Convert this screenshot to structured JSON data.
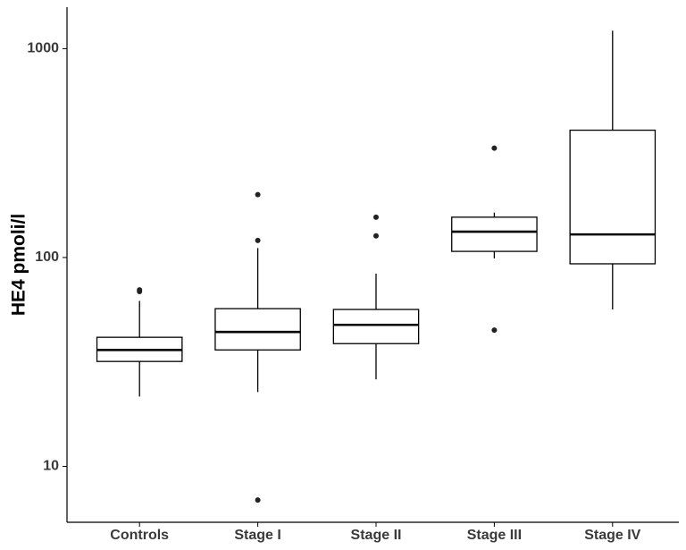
{
  "chart_data": {
    "type": "box",
    "y_label": "HE4 pmoli/l",
    "log_y": true,
    "categories": [
      "Controls",
      "Stage I",
      "Stage II",
      "Stage III",
      "Stage IV"
    ],
    "boxes": [
      {
        "whislo": 21.6,
        "q1": 31.8,
        "med": 36.1,
        "q3": 41.5,
        "whishi": 62,
        "fliers": [
          70,
          68.7
        ]
      },
      {
        "whislo": 22.7,
        "q1": 36.1,
        "med": 44,
        "q3": 56.9,
        "whishi": 111,
        "fliers": [
          200,
          120.7,
          6.9
        ]
      },
      {
        "whislo": 26.1,
        "q1": 38.7,
        "med": 47.6,
        "q3": 56.4,
        "whishi": 83.7,
        "fliers": [
          156,
          127
        ]
      },
      {
        "whislo": 99,
        "q1": 107,
        "med": 133,
        "q3": 156,
        "whishi": 164,
        "fliers": [
          334,
          44.9
        ]
      },
      {
        "whislo": 56.4,
        "q1": 93.3,
        "med": 129,
        "q3": 407,
        "whishi": 1219,
        "fliers": []
      }
    ],
    "ylim": [
      5.4,
      1580
    ],
    "yticks": [
      10,
      100,
      1000
    ],
    "color": "#000000"
  }
}
